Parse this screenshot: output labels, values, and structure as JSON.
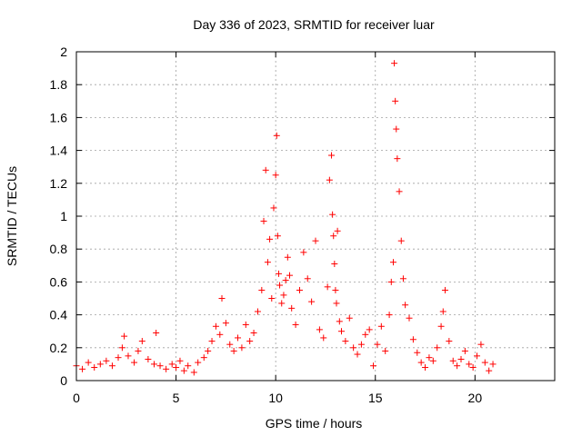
{
  "chart_data": {
    "type": "scatter",
    "title": "Day 336 of 2023, SRMTID for receiver luar",
    "xlabel": "GPS time / hours",
    "ylabel": "SRMTID / TECUs",
    "xlim": [
      0,
      24
    ],
    "ylim": [
      0,
      2
    ],
    "xticks": [
      0,
      5,
      10,
      15,
      20
    ],
    "yticks": [
      0,
      0.2,
      0.4,
      0.6,
      0.8,
      1,
      1.2,
      1.4,
      1.6,
      1.8,
      2
    ],
    "xtick_labels": [
      "0",
      "5",
      "10",
      "15",
      "20"
    ],
    "ytick_labels": [
      "0",
      "0.2",
      "0.4",
      "0.6",
      "0.8",
      "1",
      "1.2",
      "1.4",
      "1.6",
      "1.8",
      "2"
    ],
    "grid": true,
    "marker": "plus",
    "color": "#ff0000",
    "series": [
      {
        "name": "SRMTID",
        "x": [
          0.0,
          0.3,
          0.6,
          0.9,
          1.2,
          1.5,
          1.8,
          2.1,
          2.3,
          2.4,
          2.6,
          2.9,
          3.1,
          3.3,
          3.6,
          3.9,
          4.0,
          4.2,
          4.5,
          4.8,
          5.0,
          5.2,
          5.4,
          5.6,
          5.9,
          6.1,
          6.4,
          6.6,
          6.8,
          7.0,
          7.2,
          7.3,
          7.5,
          7.7,
          7.9,
          8.1,
          8.3,
          8.5,
          8.7,
          8.9,
          9.1,
          9.3,
          9.4,
          9.5,
          9.6,
          9.7,
          9.8,
          9.9,
          10.0,
          10.05,
          10.1,
          10.15,
          10.2,
          10.3,
          10.4,
          10.5,
          10.6,
          10.7,
          10.8,
          11.0,
          11.2,
          11.4,
          11.6,
          11.8,
          12.0,
          12.2,
          12.4,
          12.6,
          12.7,
          12.8,
          12.85,
          12.9,
          12.95,
          13.0,
          13.05,
          13.1,
          13.2,
          13.3,
          13.5,
          13.7,
          13.9,
          14.1,
          14.3,
          14.5,
          14.7,
          14.9,
          15.1,
          15.3,
          15.5,
          15.7,
          15.8,
          15.9,
          15.95,
          16.0,
          16.05,
          16.1,
          16.2,
          16.3,
          16.4,
          16.5,
          16.7,
          16.9,
          17.1,
          17.3,
          17.5,
          17.7,
          17.9,
          18.1,
          18.3,
          18.4,
          18.5,
          18.7,
          18.9,
          19.1,
          19.3,
          19.5,
          19.7,
          19.9,
          20.1,
          20.3,
          20.5,
          20.7,
          20.9
        ],
        "y": [
          0.09,
          0.07,
          0.11,
          0.08,
          0.1,
          0.12,
          0.09,
          0.14,
          0.2,
          0.27,
          0.15,
          0.11,
          0.18,
          0.24,
          0.13,
          0.1,
          0.29,
          0.09,
          0.07,
          0.1,
          0.08,
          0.12,
          0.06,
          0.09,
          0.05,
          0.11,
          0.14,
          0.18,
          0.24,
          0.33,
          0.28,
          0.5,
          0.35,
          0.22,
          0.18,
          0.26,
          0.2,
          0.34,
          0.24,
          0.29,
          0.42,
          0.55,
          0.97,
          1.28,
          0.72,
          0.86,
          0.5,
          1.05,
          1.25,
          1.49,
          0.88,
          0.65,
          0.58,
          0.47,
          0.52,
          0.61,
          0.75,
          0.64,
          0.44,
          0.34,
          0.55,
          0.78,
          0.62,
          0.48,
          0.85,
          0.31,
          0.26,
          0.57,
          1.22,
          1.37,
          1.01,
          0.88,
          0.71,
          0.55,
          0.47,
          0.91,
          0.36,
          0.3,
          0.24,
          0.38,
          0.2,
          0.16,
          0.22,
          0.28,
          0.31,
          0.09,
          0.22,
          0.33,
          0.18,
          0.4,
          0.6,
          0.72,
          1.93,
          1.7,
          1.53,
          1.35,
          1.15,
          0.85,
          0.62,
          0.46,
          0.38,
          0.25,
          0.17,
          0.11,
          0.08,
          0.14,
          0.12,
          0.2,
          0.33,
          0.42,
          0.55,
          0.24,
          0.12,
          0.09,
          0.13,
          0.18,
          0.1,
          0.08,
          0.15,
          0.22,
          0.11,
          0.06,
          0.1
        ]
      }
    ]
  }
}
